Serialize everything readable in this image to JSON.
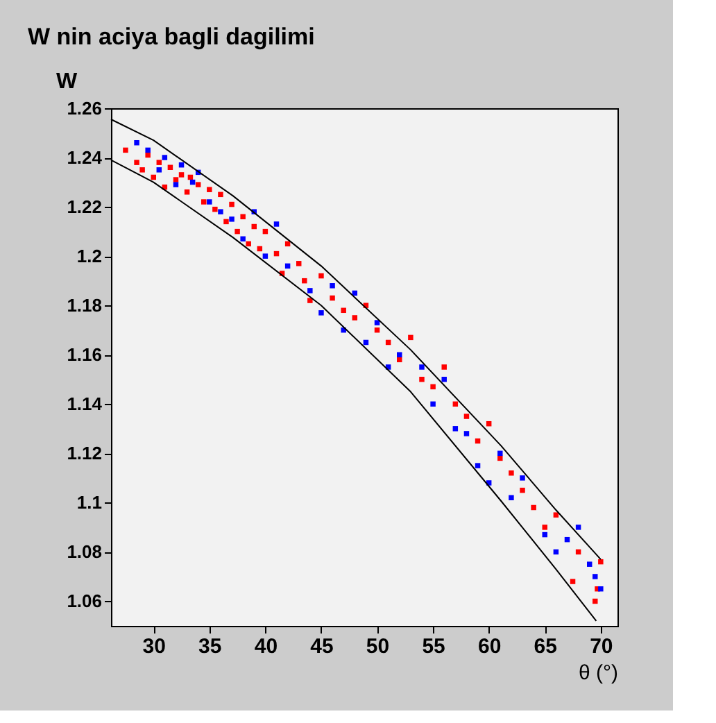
{
  "chart_data": {
    "type": "scatter",
    "title": "W nin aciya bagli dagilimi",
    "xlabel": "θ (°)",
    "ylabel": "W",
    "xlim": [
      26.2,
      71.5
    ],
    "ylim": [
      1.05,
      1.26
    ],
    "xticks": [
      30,
      35,
      40,
      45,
      50,
      55,
      60,
      65,
      70
    ],
    "yticks": [
      1.06,
      1.08,
      1.1,
      1.12,
      1.14,
      1.16,
      1.18,
      1.2,
      1.22,
      1.24,
      1.26
    ],
    "grid": false,
    "marker": "square",
    "series": [
      {
        "type": "scatter",
        "color": "#ff0000",
        "x": [
          27.5,
          28.5,
          29,
          29.5,
          30,
          30.5,
          31,
          31.5,
          32,
          32.5,
          33,
          33.3,
          34,
          34.5,
          35,
          35.5,
          36,
          36.5,
          37,
          37.5,
          38,
          38.5,
          39,
          39.5,
          40,
          41,
          41.5,
          42,
          43,
          43.5,
          44,
          45,
          46,
          47,
          48,
          49,
          50,
          51,
          52,
          53,
          54,
          55,
          56,
          57,
          58,
          59,
          60,
          61,
          62,
          63,
          64,
          65,
          66,
          67.5,
          68,
          69.5,
          69.7,
          70
        ],
        "values": [
          1.243,
          1.238,
          1.235,
          1.241,
          1.232,
          1.238,
          1.228,
          1.236,
          1.231,
          1.233,
          1.226,
          1.232,
          1.229,
          1.222,
          1.227,
          1.219,
          1.225,
          1.214,
          1.221,
          1.21,
          1.216,
          1.205,
          1.212,
          1.203,
          1.21,
          1.201,
          1.193,
          1.205,
          1.197,
          1.19,
          1.182,
          1.192,
          1.183,
          1.178,
          1.175,
          1.18,
          1.17,
          1.165,
          1.158,
          1.167,
          1.15,
          1.147,
          1.155,
          1.14,
          1.135,
          1.125,
          1.132,
          1.118,
          1.112,
          1.105,
          1.098,
          1.09,
          1.095,
          1.068,
          1.08,
          1.06,
          1.065,
          1.076
        ]
      },
      {
        "type": "scatter",
        "color": "#0000ff",
        "x": [
          28.5,
          29.5,
          30.5,
          31,
          32,
          32.5,
          33.5,
          34,
          35,
          36,
          37,
          38,
          39,
          40,
          41,
          42,
          44,
          45,
          46,
          47,
          48,
          49,
          50,
          51,
          52,
          54,
          55,
          56,
          57,
          58,
          59,
          60,
          61,
          62,
          63,
          65,
          66,
          67,
          68,
          69,
          69.5,
          70
        ],
        "values": [
          1.246,
          1.243,
          1.235,
          1.24,
          1.229,
          1.237,
          1.23,
          1.234,
          1.222,
          1.218,
          1.215,
          1.207,
          1.218,
          1.2,
          1.213,
          1.196,
          1.186,
          1.177,
          1.188,
          1.17,
          1.185,
          1.165,
          1.173,
          1.155,
          1.16,
          1.155,
          1.14,
          1.15,
          1.13,
          1.128,
          1.115,
          1.108,
          1.12,
          1.102,
          1.11,
          1.087,
          1.08,
          1.085,
          1.09,
          1.075,
          1.07,
          1.065
        ]
      },
      {
        "type": "line",
        "color": "#000000",
        "line_style": "solid",
        "marker": "none",
        "x": [
          26.2,
          30,
          37.1,
          45,
          53,
          61.1,
          66,
          70
        ],
        "values": [
          1.2555,
          1.247,
          1.2245,
          1.196,
          1.162,
          1.123,
          1.097,
          1.077
        ]
      },
      {
        "type": "line",
        "color": "#000000",
        "line_style": "solid",
        "marker": "none",
        "x": [
          26.2,
          30,
          37.1,
          45,
          53,
          61.1,
          66,
          69.6
        ],
        "values": [
          1.239,
          1.23,
          1.2076,
          1.18,
          1.145,
          1.1006,
          1.073,
          1.052
        ]
      }
    ]
  }
}
